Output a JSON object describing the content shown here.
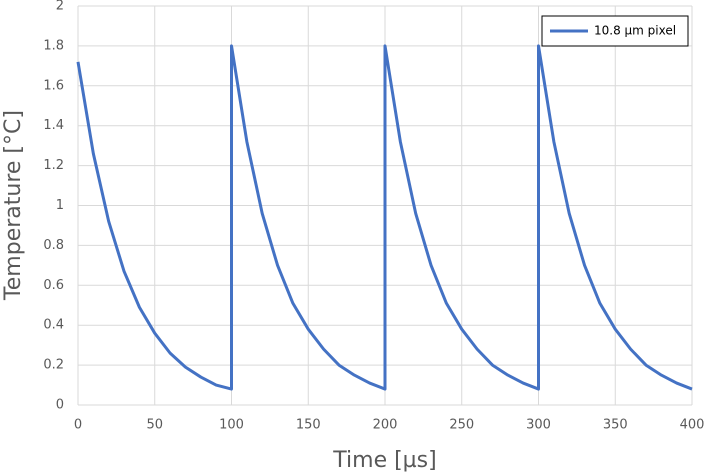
{
  "chart_data": {
    "type": "line",
    "x_label": "Time [µs]",
    "y_label": "Temperature [°C]",
    "x": [
      0,
      10,
      20,
      30,
      40,
      50,
      60,
      70,
      80,
      90,
      100,
      100,
      110,
      120,
      130,
      140,
      150,
      160,
      170,
      180,
      190,
      200,
      200,
      210,
      220,
      230,
      240,
      250,
      260,
      270,
      280,
      290,
      300,
      300,
      310,
      320,
      330,
      340,
      350,
      360,
      370,
      380,
      390,
      400
    ],
    "series": [
      {
        "name": "10.8 µm pixel",
        "color": "#4472c4",
        "values": [
          1.72,
          1.26,
          0.92,
          0.67,
          0.49,
          0.36,
          0.26,
          0.19,
          0.14,
          0.1,
          0.08,
          1.8,
          1.32,
          0.96,
          0.7,
          0.51,
          0.38,
          0.28,
          0.2,
          0.15,
          0.11,
          0.08,
          1.8,
          1.32,
          0.96,
          0.7,
          0.51,
          0.38,
          0.28,
          0.2,
          0.15,
          0.11,
          0.08,
          1.8,
          1.32,
          0.96,
          0.7,
          0.51,
          0.38,
          0.28,
          0.2,
          0.15,
          0.11,
          0.08
        ]
      }
    ],
    "xlim": [
      0,
      400
    ],
    "xticks": [
      0,
      50,
      100,
      150,
      200,
      250,
      300,
      350,
      400
    ],
    "ylim": [
      0,
      2
    ],
    "yticks": [
      0,
      0.2,
      0.4,
      0.6,
      0.8,
      1,
      1.2,
      1.4,
      1.6,
      1.8,
      2
    ],
    "grid": true,
    "legend": "upper right"
  }
}
